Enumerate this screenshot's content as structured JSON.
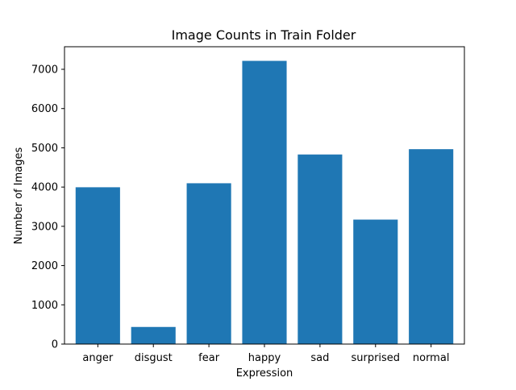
{
  "colors": {
    "bar": "#1f77b4",
    "axis": "#000000",
    "background": "#ffffff"
  },
  "chart_data": {
    "type": "bar",
    "title": "Image Counts in Train Folder",
    "xlabel": "Expression",
    "ylabel": "Number of Images",
    "categories": [
      "anger",
      "disgust",
      "fear",
      "happy",
      "sad",
      "surprised",
      "normal"
    ],
    "values": [
      3995,
      436,
      4097,
      7215,
      4830,
      3171,
      4965
    ],
    "ylim": [
      0,
      7575
    ],
    "yticks": [
      0,
      1000,
      2000,
      3000,
      4000,
      5000,
      6000,
      7000
    ],
    "grid": false,
    "legend": "none"
  }
}
